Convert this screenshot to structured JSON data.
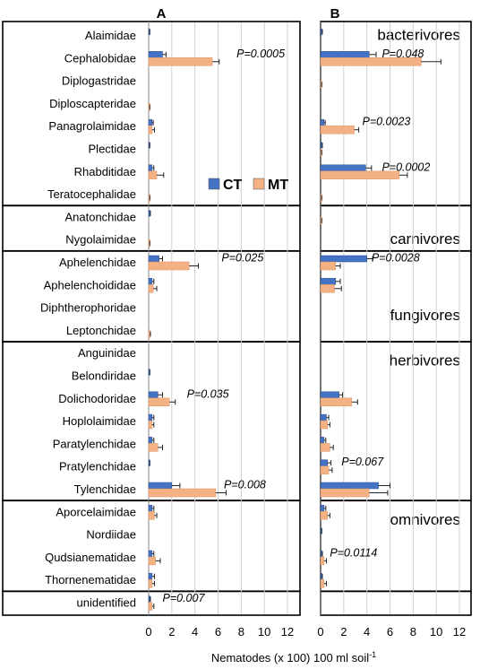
{
  "panel_labels": [
    "A",
    "B"
  ],
  "xlabel_main": "Nematodes (x 100) 100 ml soil",
  "xlabel_sup": "-1",
  "colors": {
    "CT": "#4472C4",
    "MT": "#F4B183",
    "grid": "#d0d0d0",
    "frame": "#000000"
  },
  "chart_data": {
    "type": "bar",
    "orientation": "horizontal",
    "xlim": [
      0,
      12
    ],
    "xticks": [
      "0",
      "2",
      "4",
      "6",
      "8",
      "10",
      "12"
    ],
    "legend": {
      "placement": "inside panel A, lower right of bacterivores group",
      "entries": [
        "CT",
        "MT"
      ]
    },
    "categories": [
      "Alaimidae",
      "Cephalobidae",
      "Diplogastridae",
      "Diploscapteridae",
      "Panagrolaimidae",
      "Plectidae",
      "Rhabditidae",
      "Teratocephalidae",
      "Anatonchidae",
      "Nygolaimidae",
      "Aphelenchidae",
      "Aphelenchoididae",
      "Diphtherophoridae",
      "Leptonchidae",
      "Anguinidae",
      "Belondiridae",
      "Dolichodoridae",
      "Hoplolaimidae",
      "Paratylenchidae",
      "Pratylenchidae",
      "Tylenchidae",
      "Aporcelaimidae",
      "Nordiidae",
      "Qudsianematidae",
      "Thornenematidae",
      "unidentified"
    ],
    "groups": [
      {
        "name": "bacterivores",
        "start": 0,
        "end": 7
      },
      {
        "name": "carnivores",
        "start": 8,
        "end": 9
      },
      {
        "name": "fungivores",
        "start": 10,
        "end": 13
      },
      {
        "name": "herbivores",
        "start": 14,
        "end": 20
      },
      {
        "name": "omnivores",
        "start": 21,
        "end": 24
      },
      {
        "name": "",
        "start": 25,
        "end": 25
      }
    ],
    "panels": [
      {
        "name": "A",
        "series": [
          {
            "name": "CT",
            "values": [
              0.05,
              1.2,
              0,
              0,
              0.3,
              0.05,
              0.3,
              0,
              0.1,
              0,
              0.9,
              0.3,
              0,
              0,
              0,
              0.05,
              0.8,
              0.3,
              0.3,
              0.05,
              2.0,
              0.3,
              0,
              0.3,
              0.3,
              0.1
            ],
            "errors": [
              0.05,
              0.3,
              0,
              0,
              0.1,
              0.05,
              0.15,
              0,
              0.05,
              0,
              0.3,
              0.15,
              0,
              0,
              0,
              0.05,
              0.4,
              0.15,
              0.15,
              0.05,
              0.7,
              0.15,
              0,
              0.15,
              0.2,
              0.05
            ]
          },
          {
            "name": "MT",
            "values": [
              0,
              5.5,
              0,
              0.05,
              0.3,
              0,
              0.7,
              0.05,
              0,
              0.05,
              3.5,
              0.4,
              0,
              0.1,
              0,
              0,
              1.8,
              0.3,
              0.8,
              0,
              5.8,
              0.5,
              0,
              0.6,
              0.3,
              0.3
            ],
            "errors": [
              0,
              0.6,
              0,
              0.05,
              0.2,
              0,
              0.6,
              0.05,
              0,
              0.05,
              0.8,
              0.3,
              0,
              0.05,
              0,
              0,
              0.5,
              0.15,
              0.4,
              0,
              0.9,
              0.2,
              0,
              0.4,
              0.2,
              0.15
            ]
          }
        ],
        "annotations": [
          {
            "row": 1,
            "text": "P=0.0005",
            "x": 7.6
          },
          {
            "row": 10,
            "text": "P=0.025",
            "x": 6.3
          },
          {
            "row": 16,
            "text": "P=0.035",
            "x": 3.3
          },
          {
            "row": 20,
            "text": "P=0.008",
            "x": 6.5
          },
          {
            "row": 25,
            "text": "P=0.007",
            "x": 1.2
          }
        ]
      },
      {
        "name": "B",
        "series": [
          {
            "name": "CT",
            "values": [
              0.1,
              4.2,
              0,
              0,
              0.3,
              0.1,
              3.9,
              0,
              0,
              0,
              4.0,
              1.3,
              0,
              0,
              0,
              0,
              1.6,
              0.5,
              0.3,
              0.6,
              5.0,
              0.3,
              0.05,
              0.1,
              0.1,
              0
            ],
            "errors": [
              0.05,
              0.6,
              0,
              0,
              0.1,
              0.05,
              0.5,
              0,
              0,
              0,
              0.5,
              0.4,
              0,
              0,
              0,
              0,
              0.3,
              0.2,
              0.15,
              0.3,
              1.0,
              0.15,
              0.05,
              0.05,
              0.05,
              0
            ]
          },
          {
            "name": "MT",
            "values": [
              0,
              8.7,
              0.05,
              0,
              2.9,
              0.05,
              6.8,
              0.05,
              0.05,
              0,
              1.3,
              1.2,
              0,
              0,
              0,
              0,
              2.7,
              0.6,
              0.8,
              0.7,
              4.2,
              0.6,
              0,
              0.3,
              0.3,
              0
            ],
            "errors": [
              0,
              1.7,
              0.05,
              0,
              0.4,
              0.05,
              0.7,
              0.05,
              0.05,
              0,
              0.4,
              0.6,
              0,
              0,
              0,
              0,
              0.5,
              0.2,
              0.3,
              0.3,
              1.6,
              0.2,
              0,
              0.2,
              0.2,
              0
            ]
          }
        ],
        "annotations": [
          {
            "row": 1,
            "text": "P=0.048",
            "x": 5.3
          },
          {
            "row": 4,
            "text": "P=0.0023",
            "x": 3.6
          },
          {
            "row": 6,
            "text": "P=0.0002",
            "x": 5.3
          },
          {
            "row": 10,
            "text": "P=0.0028",
            "x": 4.4
          },
          {
            "row": 19,
            "text": "P=0.067",
            "x": 1.8
          },
          {
            "row": 23,
            "text": "P=0.0114",
            "x": 0.8
          }
        ]
      }
    ]
  }
}
